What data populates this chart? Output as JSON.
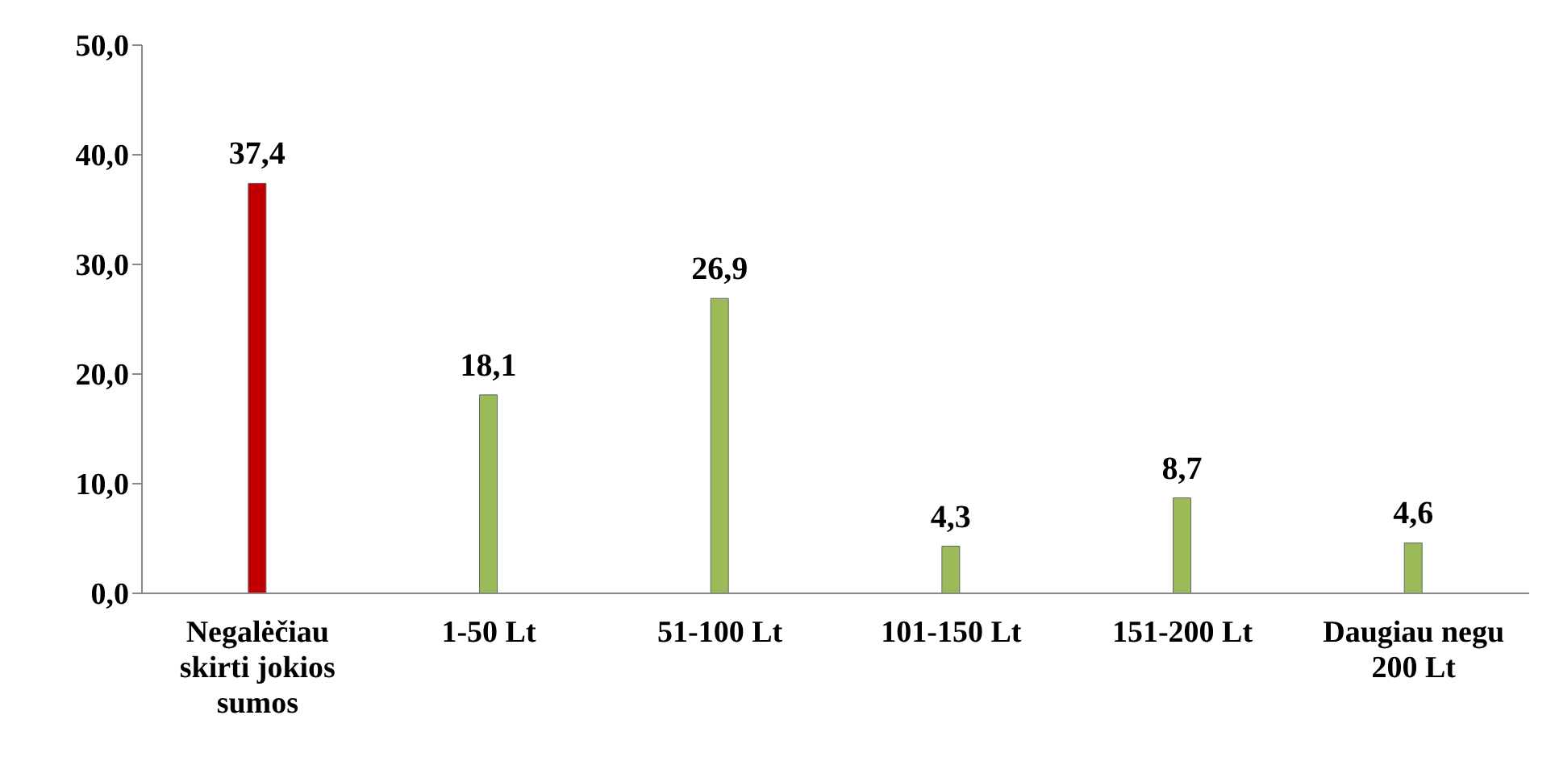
{
  "chart_data": {
    "type": "bar",
    "categories": [
      "Negalėčiau skirti jokios sumos",
      "1-50 Lt",
      "51-100 Lt",
      "101-150 Lt",
      "151-200 Lt",
      "Daugiau negu 200 Lt"
    ],
    "values": [
      37.4,
      18.1,
      26.9,
      4.3,
      8.7,
      4.6
    ],
    "colors": [
      "#c00000",
      "#9bbb59",
      "#9bbb59",
      "#9bbb59",
      "#9bbb59",
      "#9bbb59"
    ],
    "value_labels": [
      "37,4",
      "18,1",
      "26,9",
      "4,3",
      "8,7",
      "4,6"
    ],
    "ylim": [
      0,
      50
    ],
    "yticks": [
      {
        "value": 0,
        "label": "0,0"
      },
      {
        "value": 10,
        "label": "10,0"
      },
      {
        "value": 20,
        "label": "20,0"
      },
      {
        "value": 30,
        "label": "30,0"
      },
      {
        "value": 40,
        "label": "40,0"
      },
      {
        "value": 50,
        "label": "50,0"
      }
    ],
    "grid": false,
    "legend": false
  }
}
